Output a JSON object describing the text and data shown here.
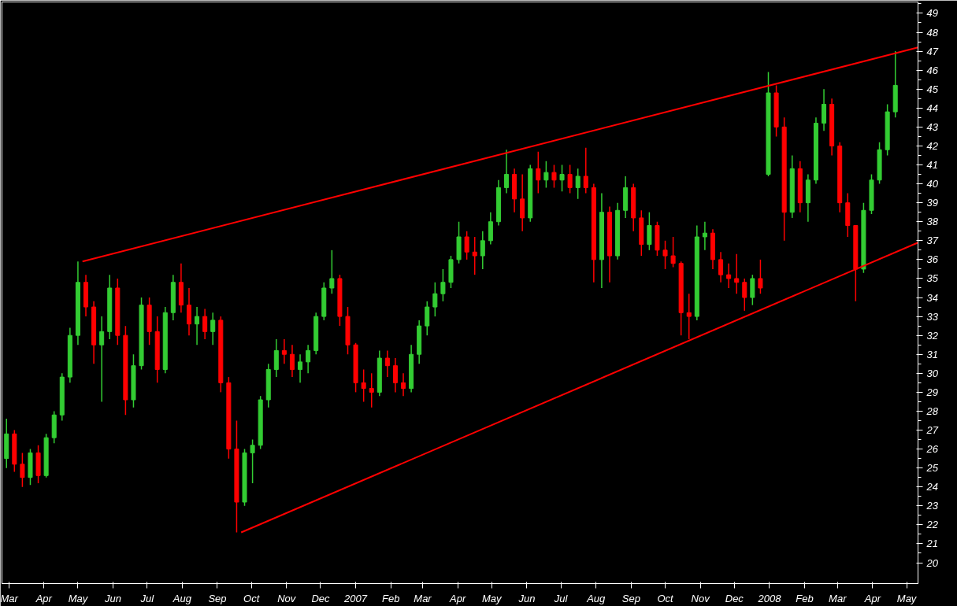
{
  "chart_data": {
    "type": "candlestick",
    "x": [
      "2006-02-27",
      "2006-03-06",
      "2006-03-13",
      "2006-03-20",
      "2006-03-27",
      "2006-04-03",
      "2006-04-10",
      "2006-04-17",
      "2006-04-24",
      "2006-05-01",
      "2006-05-08",
      "2006-05-15",
      "2006-05-22",
      "2006-05-29",
      "2006-06-05",
      "2006-06-12",
      "2006-06-19",
      "2006-06-26",
      "2006-07-03",
      "2006-07-10",
      "2006-07-17",
      "2006-07-24",
      "2006-07-31",
      "2006-08-07",
      "2006-08-14",
      "2006-08-21",
      "2006-08-28",
      "2006-09-04",
      "2006-09-11",
      "2006-09-18",
      "2006-09-25",
      "2006-10-02",
      "2006-10-09",
      "2006-10-16",
      "2006-10-23",
      "2006-10-30",
      "2006-11-06",
      "2006-11-13",
      "2006-11-20",
      "2006-11-27",
      "2006-12-04",
      "2006-12-11",
      "2006-12-18",
      "2006-12-25",
      "2007-01-01",
      "2007-01-08",
      "2007-01-15",
      "2007-01-22",
      "2007-01-29",
      "2007-02-05",
      "2007-02-12",
      "2007-02-19",
      "2007-02-26",
      "2007-03-05",
      "2007-03-12",
      "2007-03-19",
      "2007-03-26",
      "2007-04-02",
      "2007-04-09",
      "2007-04-16",
      "2007-04-23",
      "2007-04-30",
      "2007-05-07",
      "2007-05-14",
      "2007-05-21",
      "2007-05-28",
      "2007-06-04",
      "2007-06-11",
      "2007-06-18",
      "2007-06-25",
      "2007-07-02",
      "2007-07-09",
      "2007-07-16",
      "2007-07-23",
      "2007-07-30",
      "2007-08-06",
      "2007-08-13",
      "2007-08-20",
      "2007-08-27",
      "2007-09-03",
      "2007-09-10",
      "2007-09-17",
      "2007-09-24",
      "2007-10-01",
      "2007-10-08",
      "2007-10-15",
      "2007-10-22",
      "2007-10-29",
      "2007-11-05",
      "2007-11-12",
      "2007-11-19",
      "2007-11-26",
      "2007-12-03",
      "2007-12-10",
      "2007-12-17",
      "2007-12-24",
      "2007-12-31",
      "2008-01-07",
      "2008-01-14",
      "2008-01-21",
      "2008-01-28",
      "2008-02-04",
      "2008-02-11",
      "2008-02-18",
      "2008-02-25",
      "2008-03-03",
      "2008-03-10",
      "2008-03-17",
      "2008-03-24",
      "2008-03-31",
      "2008-04-07",
      "2008-04-14",
      "2008-04-21"
    ],
    "ohlc": [
      [
        25.5,
        27.6,
        25.0,
        26.8
      ],
      [
        26.8,
        27.0,
        24.8,
        25.2
      ],
      [
        25.2,
        25.8,
        24.0,
        24.5
      ],
      [
        24.5,
        26.0,
        24.1,
        25.8
      ],
      [
        25.8,
        26.2,
        24.2,
        24.6
      ],
      [
        24.6,
        26.8,
        24.5,
        26.6
      ],
      [
        26.6,
        28.0,
        26.3,
        27.8
      ],
      [
        27.8,
        30.0,
        27.5,
        29.8
      ],
      [
        29.8,
        32.4,
        29.5,
        32.0
      ],
      [
        32.0,
        35.9,
        31.5,
        34.8
      ],
      [
        34.8,
        35.2,
        33.0,
        33.5
      ],
      [
        33.5,
        33.8,
        30.5,
        31.5
      ],
      [
        31.5,
        33.0,
        28.5,
        32.2
      ],
      [
        32.2,
        35.2,
        31.8,
        34.5
      ],
      [
        34.5,
        35.0,
        31.5,
        32.0
      ],
      [
        32.0,
        32.5,
        27.8,
        28.6
      ],
      [
        28.6,
        31.0,
        28.2,
        30.4
      ],
      [
        30.4,
        34.0,
        30.2,
        33.6
      ],
      [
        33.6,
        34.0,
        31.5,
        32.2
      ],
      [
        32.2,
        33.0,
        29.5,
        30.2
      ],
      [
        30.2,
        33.5,
        30.0,
        33.2
      ],
      [
        33.2,
        35.2,
        32.8,
        34.8
      ],
      [
        34.8,
        35.8,
        33.2,
        33.6
      ],
      [
        33.6,
        34.5,
        32.0,
        32.6
      ],
      [
        32.6,
        33.5,
        31.5,
        33.0
      ],
      [
        33.0,
        33.4,
        31.8,
        32.2
      ],
      [
        32.2,
        33.2,
        31.5,
        32.8
      ],
      [
        32.8,
        33.0,
        29.0,
        29.5
      ],
      [
        29.5,
        29.8,
        25.5,
        26.0
      ],
      [
        26.0,
        27.5,
        21.6,
        23.2
      ],
      [
        23.2,
        26.0,
        23.0,
        25.8
      ],
      [
        25.8,
        26.5,
        24.2,
        26.2
      ],
      [
        26.2,
        28.8,
        26.0,
        28.6
      ],
      [
        28.6,
        30.5,
        28.2,
        30.2
      ],
      [
        30.2,
        31.8,
        29.8,
        31.2
      ],
      [
        31.2,
        31.8,
        30.5,
        31.0
      ],
      [
        31.0,
        31.5,
        29.8,
        30.2
      ],
      [
        30.2,
        31.0,
        29.5,
        30.6
      ],
      [
        30.6,
        31.5,
        30.0,
        31.2
      ],
      [
        31.2,
        33.2,
        31.0,
        33.0
      ],
      [
        33.0,
        34.8,
        32.8,
        34.5
      ],
      [
        34.5,
        36.5,
        34.2,
        35.0
      ],
      [
        35.0,
        35.2,
        32.5,
        33.0
      ],
      [
        33.0,
        33.5,
        31.0,
        31.5
      ],
      [
        31.5,
        31.6,
        29.0,
        29.5
      ],
      [
        29.5,
        30.2,
        28.5,
        29.2
      ],
      [
        29.2,
        30.0,
        28.2,
        29.0
      ],
      [
        29.0,
        31.2,
        28.8,
        30.8
      ],
      [
        30.8,
        31.2,
        29.8,
        30.4
      ],
      [
        30.4,
        30.8,
        29.0,
        29.5
      ],
      [
        29.5,
        30.0,
        28.8,
        29.2
      ],
      [
        29.2,
        31.5,
        29.0,
        31.0
      ],
      [
        31.0,
        32.8,
        30.5,
        32.5
      ],
      [
        32.5,
        33.8,
        32.0,
        33.5
      ],
      [
        33.5,
        34.8,
        33.0,
        34.2
      ],
      [
        34.2,
        35.5,
        33.8,
        34.8
      ],
      [
        34.8,
        36.2,
        34.5,
        36.0
      ],
      [
        36.0,
        38.0,
        35.8,
        37.2
      ],
      [
        37.2,
        37.5,
        36.0,
        36.4
      ],
      [
        36.4,
        37.2,
        35.2,
        36.2
      ],
      [
        36.2,
        37.5,
        35.5,
        37.0
      ],
      [
        37.0,
        38.5,
        36.8,
        38.0
      ],
      [
        38.0,
        40.2,
        37.8,
        39.8
      ],
      [
        39.8,
        41.8,
        39.5,
        40.5
      ],
      [
        40.5,
        40.8,
        38.5,
        39.2
      ],
      [
        39.2,
        40.5,
        37.5,
        38.2
      ],
      [
        38.2,
        41.0,
        38.0,
        40.8
      ],
      [
        40.8,
        41.7,
        39.5,
        40.2
      ],
      [
        40.2,
        41.2,
        39.8,
        40.6
      ],
      [
        40.6,
        41.0,
        39.8,
        40.2
      ],
      [
        40.2,
        41.0,
        39.6,
        40.5
      ],
      [
        40.5,
        41.0,
        39.5,
        39.8
      ],
      [
        39.8,
        40.8,
        39.2,
        40.4
      ],
      [
        40.4,
        41.9,
        39.5,
        39.8
      ],
      [
        39.8,
        40.0,
        34.8,
        36.0
      ],
      [
        36.0,
        39.5,
        34.5,
        38.5
      ],
      [
        38.5,
        38.8,
        34.8,
        36.2
      ],
      [
        36.2,
        39.0,
        36.0,
        38.6
      ],
      [
        38.6,
        40.4,
        38.2,
        39.8
      ],
      [
        39.8,
        40.0,
        37.5,
        38.2
      ],
      [
        38.2,
        38.6,
        36.2,
        36.8
      ],
      [
        36.8,
        38.5,
        36.5,
        37.8
      ],
      [
        37.8,
        38.0,
        36.2,
        36.5
      ],
      [
        36.5,
        37.0,
        35.5,
        36.2
      ],
      [
        36.2,
        37.2,
        35.6,
        35.8
      ],
      [
        35.8,
        35.9,
        32.0,
        33.2
      ],
      [
        33.2,
        34.2,
        31.8,
        33.0
      ],
      [
        33.0,
        37.8,
        32.8,
        37.2
      ],
      [
        37.2,
        38.0,
        36.5,
        37.4
      ],
      [
        37.4,
        37.6,
        35.5,
        36.0
      ],
      [
        36.0,
        36.4,
        34.8,
        35.2
      ],
      [
        35.2,
        35.8,
        34.5,
        35.0
      ],
      [
        35.0,
        36.3,
        34.2,
        34.8
      ],
      [
        34.8,
        35.0,
        33.3,
        34.0
      ],
      [
        34.0,
        35.2,
        33.6,
        35.0
      ],
      [
        35.0,
        36.0,
        34.2,
        34.5
      ],
      [
        40.5,
        45.9,
        40.4,
        44.8
      ],
      [
        44.8,
        45.2,
        42.5,
        43.0
      ],
      [
        43.0,
        43.5,
        37.0,
        38.5
      ],
      [
        38.5,
        41.5,
        38.2,
        40.8
      ],
      [
        40.8,
        41.2,
        38.5,
        39.0
      ],
      [
        39.0,
        40.5,
        38.0,
        40.2
      ],
      [
        40.2,
        43.5,
        40.0,
        43.2
      ],
      [
        43.2,
        45.0,
        42.8,
        44.2
      ],
      [
        44.2,
        44.5,
        41.5,
        42.0
      ],
      [
        42.0,
        42.2,
        38.5,
        39.0
      ],
      [
        39.0,
        39.5,
        37.2,
        37.8
      ],
      [
        37.8,
        37.8,
        33.8,
        35.5
      ],
      [
        35.5,
        39.0,
        35.3,
        38.6
      ],
      [
        38.6,
        40.5,
        38.4,
        40.2
      ],
      [
        40.2,
        42.2,
        40.0,
        41.8
      ],
      [
        41.8,
        44.2,
        41.5,
        43.8
      ],
      [
        43.8,
        47.0,
        43.5,
        45.2
      ]
    ],
    "colors": [
      "#33cc33",
      "#ff0000",
      "#ff0000",
      "#33cc33",
      "#ff0000",
      "#33cc33",
      "#33cc33",
      "#33cc33",
      "#33cc33",
      "#33cc33",
      "#ff0000",
      "#ff0000",
      "#33cc33",
      "#33cc33",
      "#ff0000",
      "#ff0000",
      "#33cc33",
      "#33cc33",
      "#ff0000",
      "#ff0000",
      "#33cc33",
      "#33cc33",
      "#ff0000",
      "#ff0000",
      "#33cc33",
      "#ff0000",
      "#33cc33",
      "#ff0000",
      "#ff0000",
      "#ff0000",
      "#33cc33",
      "#33cc33",
      "#33cc33",
      "#33cc33",
      "#33cc33",
      "#ff0000",
      "#ff0000",
      "#33cc33",
      "#33cc33",
      "#33cc33",
      "#33cc33",
      "#33cc33",
      "#ff0000",
      "#ff0000",
      "#ff0000",
      "#ff0000",
      "#ff0000",
      "#33cc33",
      "#ff0000",
      "#ff0000",
      "#ff0000",
      "#33cc33",
      "#33cc33",
      "#33cc33",
      "#33cc33",
      "#33cc33",
      "#33cc33",
      "#33cc33",
      "#ff0000",
      "#ff0000",
      "#33cc33",
      "#33cc33",
      "#33cc33",
      "#33cc33",
      "#ff0000",
      "#ff0000",
      "#33cc33",
      "#ff0000",
      "#33cc33",
      "#ff0000",
      "#33cc33",
      "#ff0000",
      "#33cc33",
      "#ff0000",
      "#ff0000",
      "#33cc33",
      "#ff0000",
      "#33cc33",
      "#33cc33",
      "#ff0000",
      "#ff0000",
      "#33cc33",
      "#ff0000",
      "#ff0000",
      "#ff0000",
      "#ff0000",
      "#ff0000",
      "#33cc33",
      "#33cc33",
      "#ff0000",
      "#ff0000",
      "#ff0000",
      "#ff0000",
      "#ff0000",
      "#33cc33",
      "#ff0000",
      "#33cc33",
      "#ff0000",
      "#ff0000",
      "#33cc33",
      "#ff0000",
      "#33cc33",
      "#33cc33",
      "#33cc33",
      "#ff0000",
      "#ff0000",
      "#ff0000",
      "#ff0000",
      "#33cc33",
      "#33cc33",
      "#33cc33",
      "#33cc33",
      "#33cc33"
    ],
    "series": [
      {
        "type": "line",
        "color": "#ff0000",
        "x": [
          "2006-05-05",
          "2008-05-11"
        ],
        "values": [
          35.9,
          47.2
        ]
      },
      {
        "type": "line",
        "color": "#ff0000",
        "x": [
          "2006-09-22",
          "2008-05-11"
        ],
        "values": [
          21.6,
          36.9
        ]
      }
    ],
    "xlim": [
      "2006-02-23",
      "2008-05-11"
    ],
    "xticks": [
      {
        "value": "2006-03-01",
        "label": "Mar"
      },
      {
        "value": "2006-04-01",
        "label": "Apr"
      },
      {
        "value": "2006-05-01",
        "label": "May"
      },
      {
        "value": "2006-06-01",
        "label": "Jun"
      },
      {
        "value": "2006-07-01",
        "label": "Jul"
      },
      {
        "value": "2006-08-01",
        "label": "Aug"
      },
      {
        "value": "2006-09-01",
        "label": "Sep"
      },
      {
        "value": "2006-10-01",
        "label": "Oct"
      },
      {
        "value": "2006-11-01",
        "label": "Nov"
      },
      {
        "value": "2006-12-01",
        "label": "Dec"
      },
      {
        "value": "2007-01-01",
        "label": "2007"
      },
      {
        "value": "2007-02-01",
        "label": "Feb"
      },
      {
        "value": "2007-03-01",
        "label": "Mar"
      },
      {
        "value": "2007-04-01",
        "label": "Apr"
      },
      {
        "value": "2007-05-01",
        "label": "May"
      },
      {
        "value": "2007-06-01",
        "label": "Jun"
      },
      {
        "value": "2007-07-01",
        "label": "Jul"
      },
      {
        "value": "2007-08-01",
        "label": "Aug"
      },
      {
        "value": "2007-09-01",
        "label": "Sep"
      },
      {
        "value": "2007-10-01",
        "label": "Oct"
      },
      {
        "value": "2007-11-01",
        "label": "Nov"
      },
      {
        "value": "2007-12-01",
        "label": "Dec"
      },
      {
        "value": "2008-01-01",
        "label": "2008"
      },
      {
        "value": "2008-02-01",
        "label": "Feb"
      },
      {
        "value": "2008-03-01",
        "label": "Mar"
      },
      {
        "value": "2008-04-01",
        "label": "Apr"
      },
      {
        "value": "2008-05-01",
        "label": "May"
      }
    ],
    "ylim": [
      18.9,
      49.6
    ],
    "yticks": [
      20,
      21,
      22,
      23,
      24,
      25,
      26,
      27,
      28,
      29,
      30,
      31,
      32,
      33,
      34,
      35,
      36,
      37,
      38,
      39,
      40,
      41,
      42,
      43,
      44,
      45,
      46,
      47,
      48,
      49
    ],
    "grid": false
  }
}
